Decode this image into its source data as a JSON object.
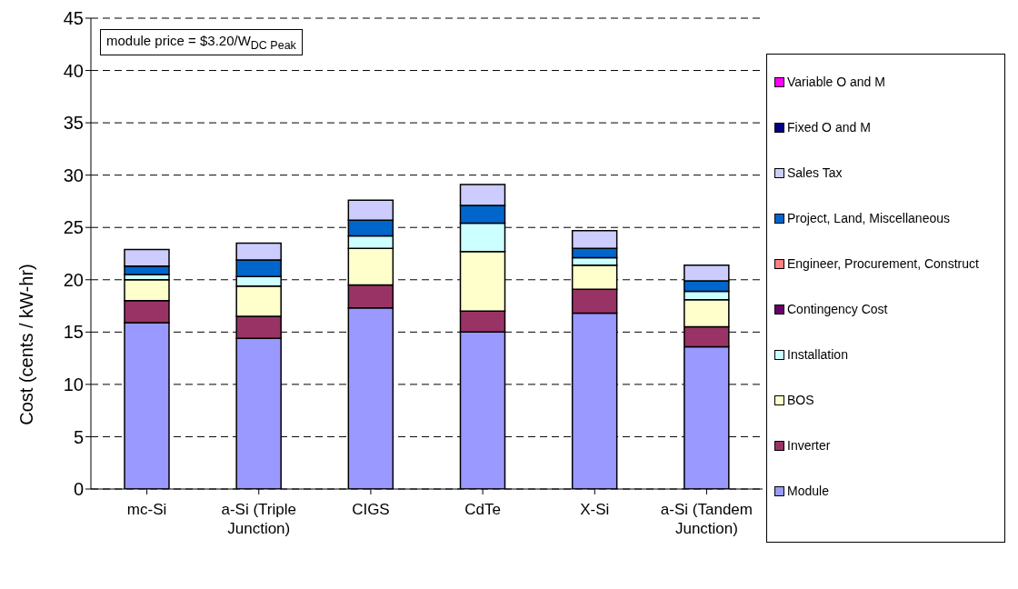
{
  "chart_data": {
    "type": "bar",
    "stacked": true,
    "ylabel": "Cost (cents / kW-hr)",
    "categories": [
      "mc-Si",
      "a-Si (Triple Junction)",
      "CIGS",
      "CdTe",
      "X-Si",
      "a-Si (Tandem Junction)"
    ],
    "series": [
      {
        "name": "Module",
        "color": "#9999ff",
        "values": [
          15.9,
          14.4,
          17.3,
          15.0,
          16.8,
          13.6
        ]
      },
      {
        "name": "Inverter",
        "color": "#993366",
        "values": [
          2.1,
          2.1,
          2.2,
          2.0,
          2.3,
          1.9
        ]
      },
      {
        "name": "BOS",
        "color": "#ffffcc",
        "values": [
          2.0,
          2.9,
          3.5,
          5.7,
          2.3,
          2.6
        ]
      },
      {
        "name": "Installation",
        "color": "#ccffff",
        "values": [
          0.5,
          0.9,
          1.2,
          2.7,
          0.7,
          0.8
        ]
      },
      {
        "name": "Contingency Cost",
        "color": "#660066",
        "values": [
          0,
          0,
          0,
          0,
          0,
          0
        ]
      },
      {
        "name": "Engineer, Procurement, Construct",
        "color": "#ff8080",
        "values": [
          0,
          0,
          0,
          0,
          0,
          0
        ]
      },
      {
        "name": "Project, Land, Miscellaneous",
        "color": "#0066cc",
        "values": [
          0.8,
          1.6,
          1.5,
          1.7,
          0.9,
          1.0
        ]
      },
      {
        "name": "Sales Tax",
        "color": "#ccccff",
        "values": [
          1.6,
          1.6,
          1.9,
          2.0,
          1.7,
          1.5
        ]
      },
      {
        "name": "Fixed O and M",
        "color": "#000080",
        "values": [
          0,
          0,
          0,
          0,
          0,
          0
        ]
      },
      {
        "name": "Variable O and M",
        "color": "#ff00ff",
        "values": [
          0,
          0,
          0,
          0,
          0,
          0
        ]
      }
    ],
    "ylim": [
      0,
      45
    ],
    "yticks": [
      0,
      5,
      10,
      15,
      20,
      25,
      30,
      35,
      40,
      45
    ],
    "grid": "y",
    "legend": "right",
    "annotations": [
      "module price = $3.20/W$_{DC Peak}$"
    ]
  }
}
